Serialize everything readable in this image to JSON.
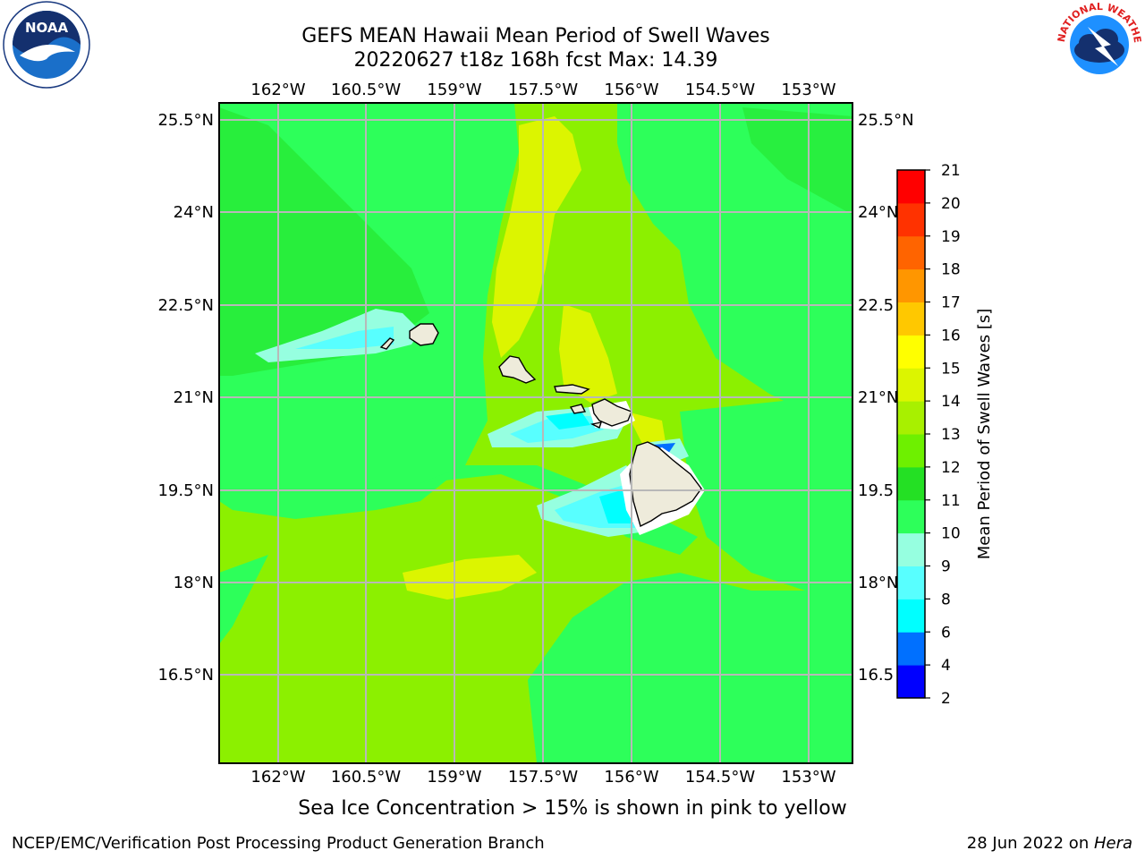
{
  "title": {
    "line1": "GEFS MEAN Hawaii Mean Period of Swell Waves",
    "line2": "20220627 t18z 168h fcst   Max: 14.39"
  },
  "map": {
    "lon_labels": [
      "162°W",
      "160.5°W",
      "159°W",
      "157.5°W",
      "156°W",
      "154.5°W",
      "153°W"
    ],
    "lat_labels_left": [
      "25.5°N",
      "24°N",
      "22.5°N",
      "21°N",
      "19.5°N",
      "18°N",
      "16.5°N"
    ],
    "lat_labels_right": [
      "25.5°N",
      "24°N",
      "22.5",
      "21°N",
      "19.5",
      "18°N",
      "16.5"
    ],
    "background_color": "#8cf000"
  },
  "colorbar": {
    "label": "Mean Period of Swell Waves [s]",
    "ticks": [
      "2",
      "4",
      "6",
      "8",
      "9",
      "10",
      "11",
      "12",
      "13",
      "14",
      "15",
      "16",
      "17",
      "18",
      "19",
      "20",
      "21"
    ],
    "colors": [
      "#0000ff",
      "#0070ff",
      "#00ffff",
      "#58ffff",
      "#96ffe0",
      "#2dff5a",
      "#24e024",
      "#6ef000",
      "#a8f000",
      "#dcf500",
      "#ffff00",
      "#ffc800",
      "#ff9600",
      "#ff6400",
      "#ff3200",
      "#ff0000"
    ]
  },
  "note": "Sea Ice Concentration > 15% is shown in pink to yellow",
  "footer": {
    "left": "NCEP/EMC/Verification Post Processing Product Generation Branch",
    "right_prefix": "28 Jun 2022 on ",
    "right_host": "Hera"
  },
  "logos": {
    "left_text": "NOAA",
    "right_text": "NATIONAL WEATHER SERVICE"
  }
}
